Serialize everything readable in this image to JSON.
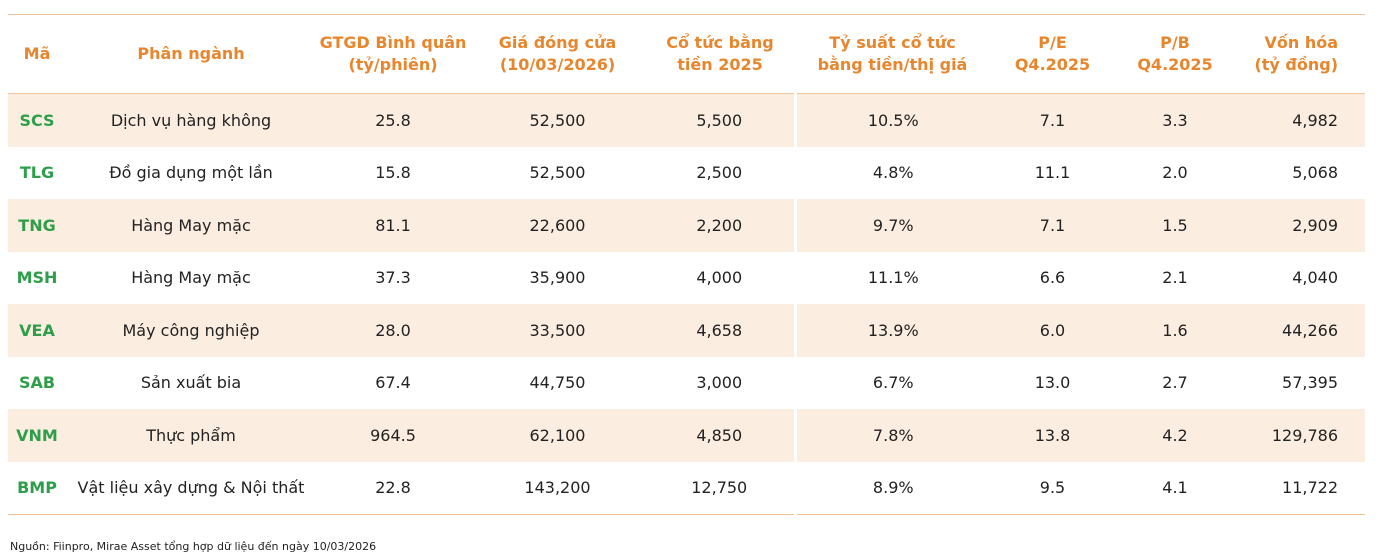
{
  "table": {
    "headers": [
      [
        "Mã"
      ],
      [
        "Phân ngành"
      ],
      [
        "GTGD Bình quân",
        "(tỷ/phiên)"
      ],
      [
        "Giá đóng cửa",
        "(10/03/2026)"
      ],
      [
        "Cổ tức bằng",
        "tiền 2025"
      ],
      [
        "Tỷ suất cổ tức",
        "bằng tiền/thị giá"
      ],
      [
        "P/E",
        "Q4.2025"
      ],
      [
        "P/B",
        "Q4.2025"
      ],
      [
        "Vốn hóa",
        "(tỷ đồng)"
      ]
    ],
    "rows": [
      [
        "SCS",
        "Dịch vụ hàng không",
        "25.8",
        "52,500",
        "5,500",
        "10.5%",
        "7.1",
        "3.3",
        "4,982"
      ],
      [
        "TLG",
        "Đồ gia dụng một lần",
        "15.8",
        "52,500",
        "2,500",
        "4.8%",
        "11.1",
        "2.0",
        "5,068"
      ],
      [
        "TNG",
        "Hàng May mặc",
        "81.1",
        "22,600",
        "2,200",
        "9.7%",
        "7.1",
        "1.5",
        "2,909"
      ],
      [
        "MSH",
        "Hàng May mặc",
        "37.3",
        "35,900",
        "4,000",
        "11.1%",
        "6.6",
        "2.1",
        "4,040"
      ],
      [
        "VEA",
        "Máy công nghiệp",
        "28.0",
        "33,500",
        "4,658",
        "13.9%",
        "6.0",
        "1.6",
        "44,266"
      ],
      [
        "SAB",
        "Sản xuất bia",
        "67.4",
        "44,750",
        "3,000",
        "6.7%",
        "13.0",
        "2.7",
        "57,395"
      ],
      [
        "VNM",
        "Thực phẩm",
        "964.5",
        "62,100",
        "4,850",
        "7.8%",
        "13.8",
        "4.2",
        "129,786"
      ],
      [
        "BMP",
        "Vật liệu xây dựng & Nội thất",
        "22.8",
        "143,200",
        "12,750",
        "8.9%",
        "9.5",
        "4.1",
        "11,722"
      ]
    ]
  },
  "source": "Nguồn: Fiinpro, Mirae Asset tổng hợp dữ liệu đến ngày 10/03/2026"
}
